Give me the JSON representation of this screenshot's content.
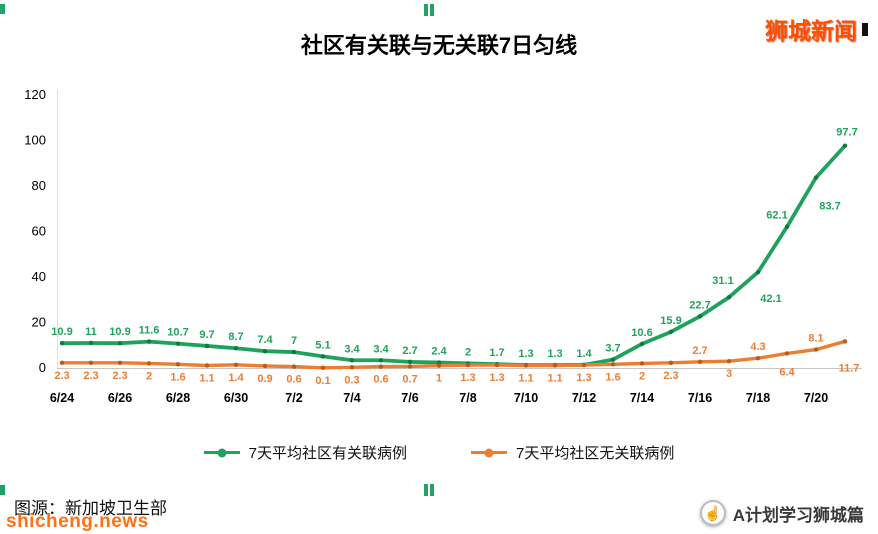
{
  "header": {
    "brand": "狮城新闻"
  },
  "footer": {
    "caption": "图源：新加坡卫生部",
    "watermark": "shicheng.news",
    "badge_icon": "☝",
    "badge_label": "A计划学习狮城篇"
  },
  "chart_data": {
    "type": "line",
    "title": "社区有关联与无关联7日匀线",
    "x_tick_labels": [
      "6/24",
      "6/26",
      "6/28",
      "6/30",
      "7/2",
      "7/4",
      "7/6",
      "7/8",
      "7/10",
      "7/12",
      "7/14",
      "7/16",
      "7/18",
      "7/20"
    ],
    "points_per_tick": 2,
    "y_ticks": [
      0,
      20,
      40,
      60,
      80,
      100,
      120
    ],
    "ylim": [
      0,
      120
    ],
    "grid": false,
    "legend_position": "bottom",
    "series": [
      {
        "name": "7天平均社区有关联病例",
        "color": "#1fa35c",
        "marker_color": "#0e7a3e",
        "values": [
          10.9,
          11,
          10.9,
          11.6,
          10.7,
          9.7,
          8.7,
          7.4,
          7,
          5.1,
          3.4,
          3.4,
          2.7,
          2.4,
          2,
          1.7,
          1.3,
          1.3,
          1.4,
          3.7,
          10.6,
          15.9,
          22.7,
          31.1,
          42.1,
          62.1,
          83.7,
          97.7
        ]
      },
      {
        "name": "7天平均社区无关联病例",
        "color": "#ed7d31",
        "marker_color": "#b85c1a",
        "values": [
          2.3,
          2.3,
          2.3,
          2,
          1.6,
          1.1,
          1.4,
          0.9,
          0.6,
          0.1,
          0.3,
          0.6,
          0.7,
          1,
          1.3,
          1.3,
          1.1,
          1.1,
          1.3,
          1.6,
          2,
          2.3,
          2.7,
          3,
          4.3,
          6.4,
          8.1,
          11.7
        ]
      }
    ]
  }
}
